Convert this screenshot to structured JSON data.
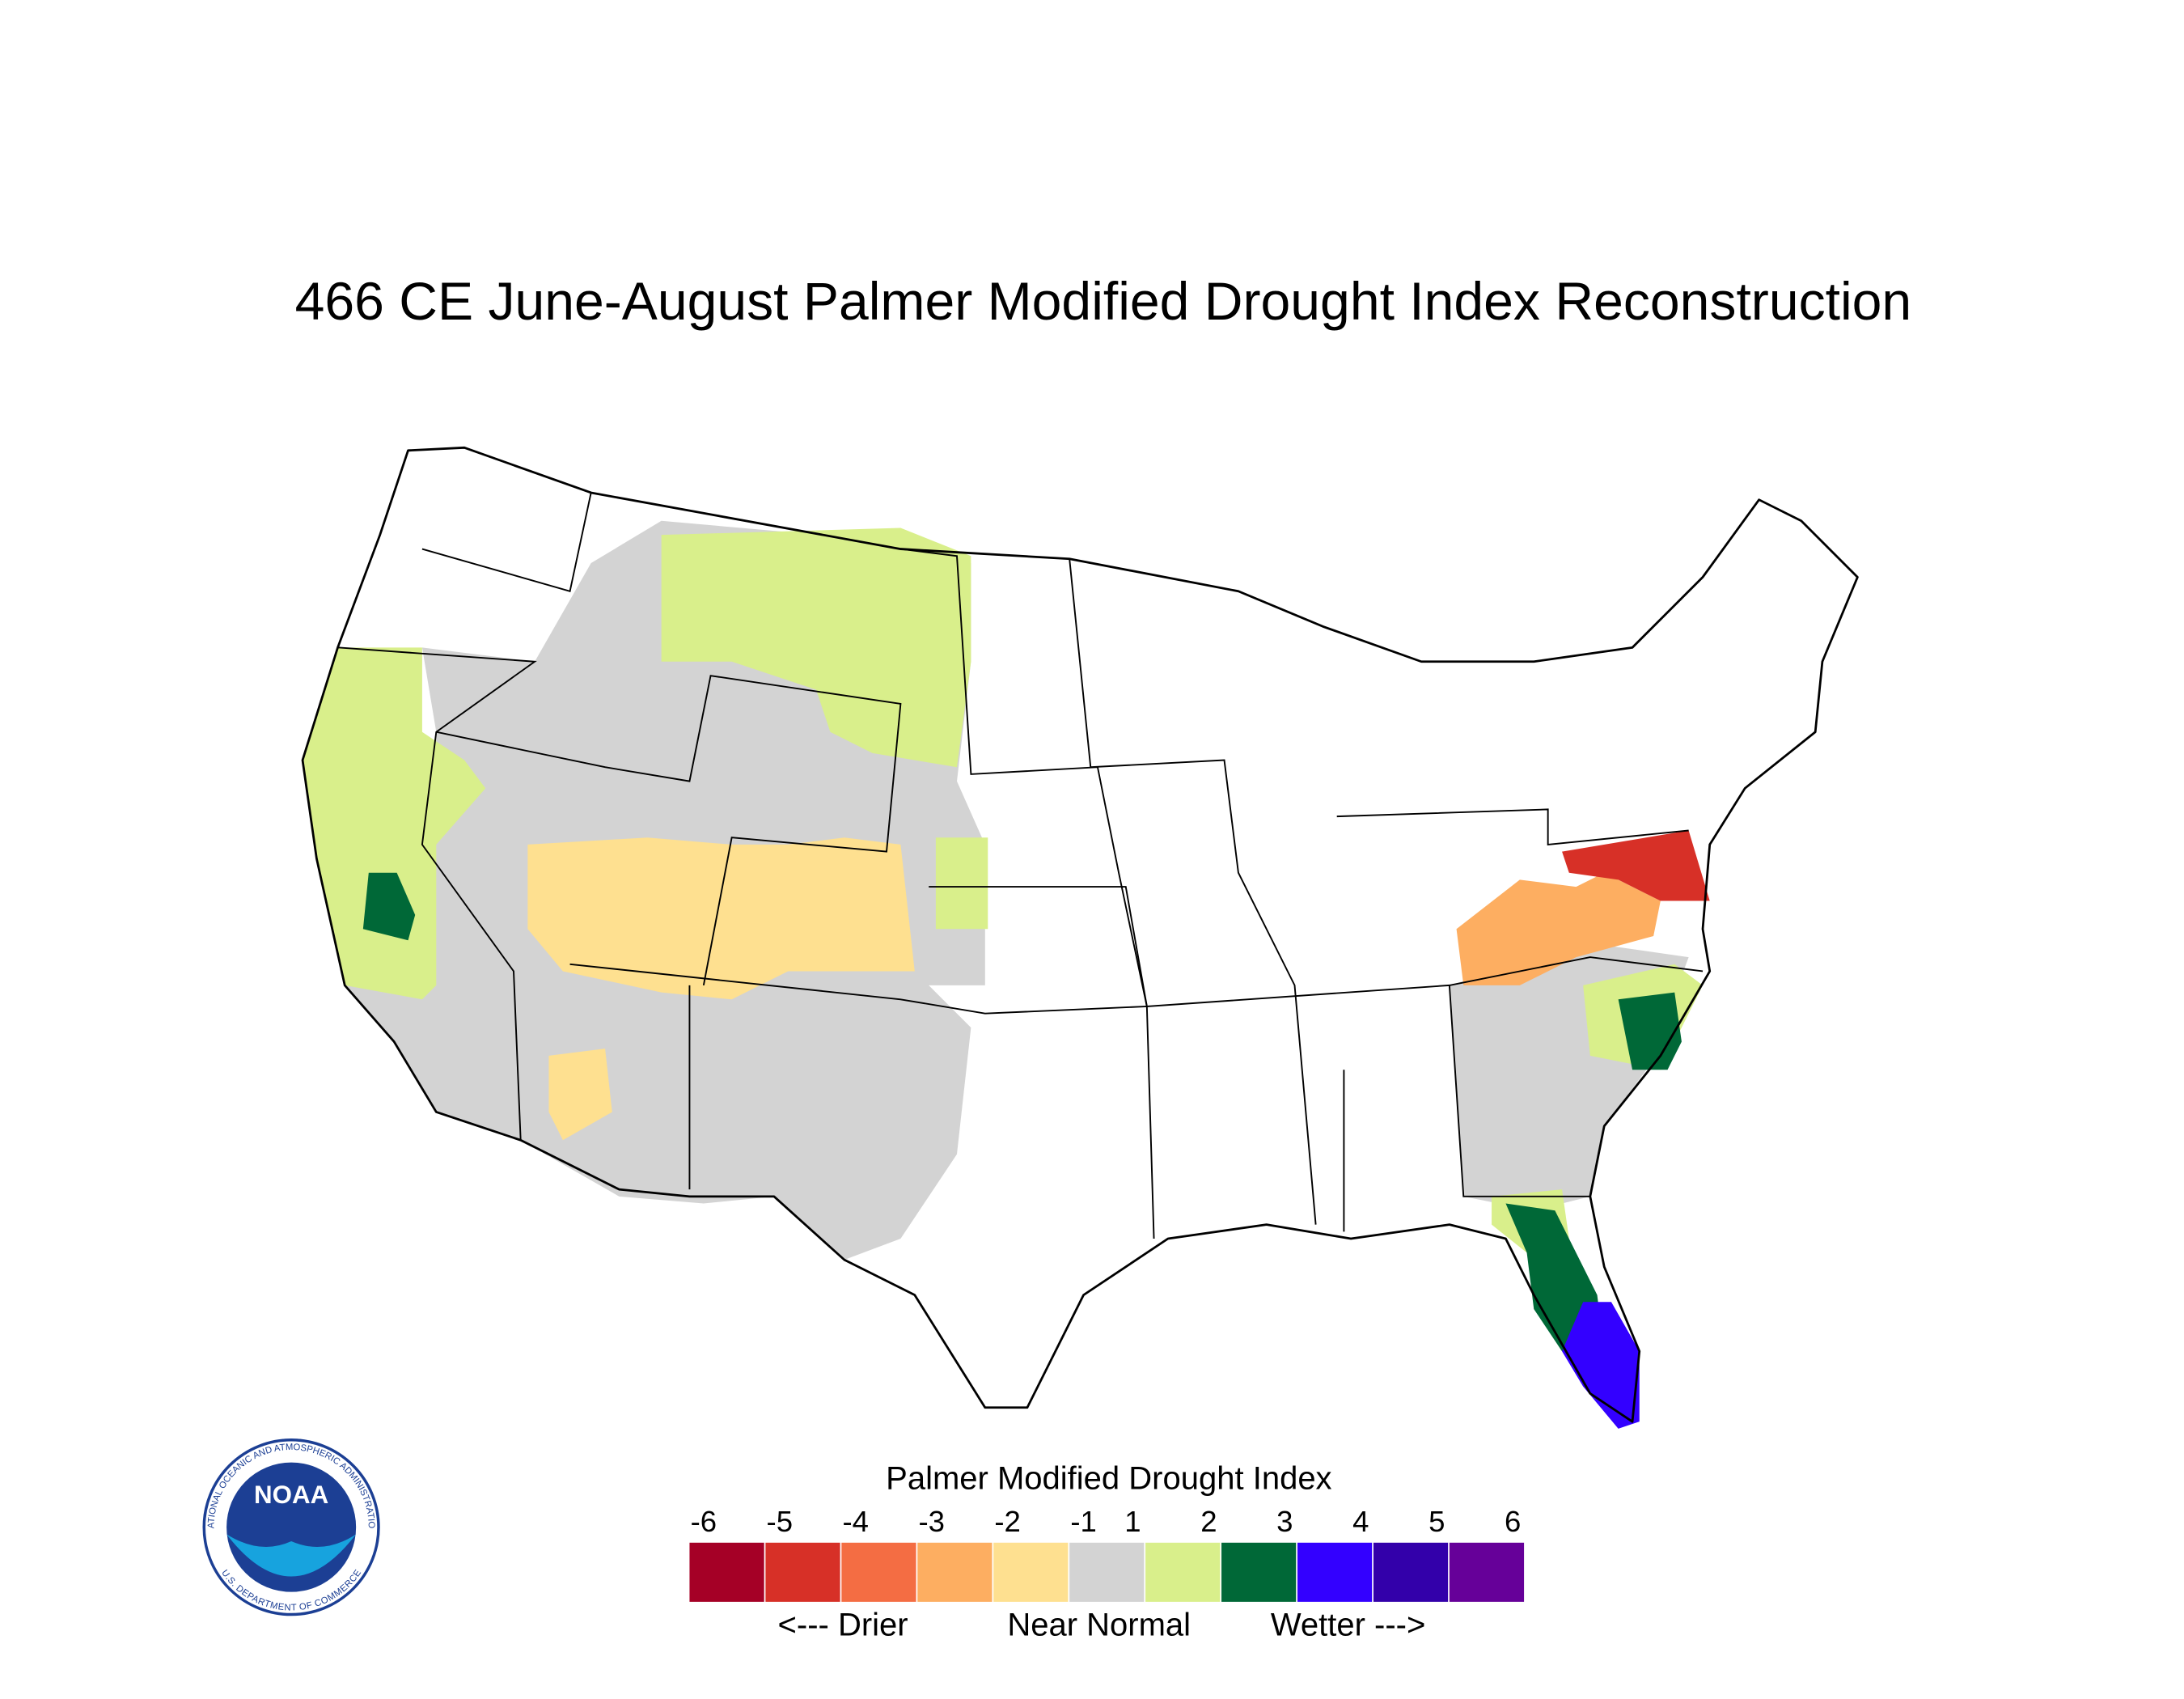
{
  "title": "466 CE  June-August  Palmer Modified Drought Index Reconstruction",
  "legend": {
    "title": "Palmer Modified Drought Index",
    "ticks": [
      -6,
      -5,
      -4,
      -3,
      -2,
      -1,
      1,
      2,
      3,
      4,
      5,
      6
    ],
    "colors": [
      "#a50026",
      "#d73027",
      "#f46d43",
      "#fdae61",
      "#fee090",
      "#d3d3d3",
      "#d9ef8b",
      "#006837",
      "#3300ff",
      "#3300aa",
      "#660099"
    ],
    "descriptors": [
      "<--- Drier",
      "Near Normal",
      "Wetter --->"
    ]
  },
  "logo": {
    "text": "NOAA",
    "ring_top": "NATIONAL OCEANIC AND ATMOSPHERIC ADMINISTRATION",
    "ring_bottom": "U.S. DEPARTMENT OF COMMERCE"
  }
}
